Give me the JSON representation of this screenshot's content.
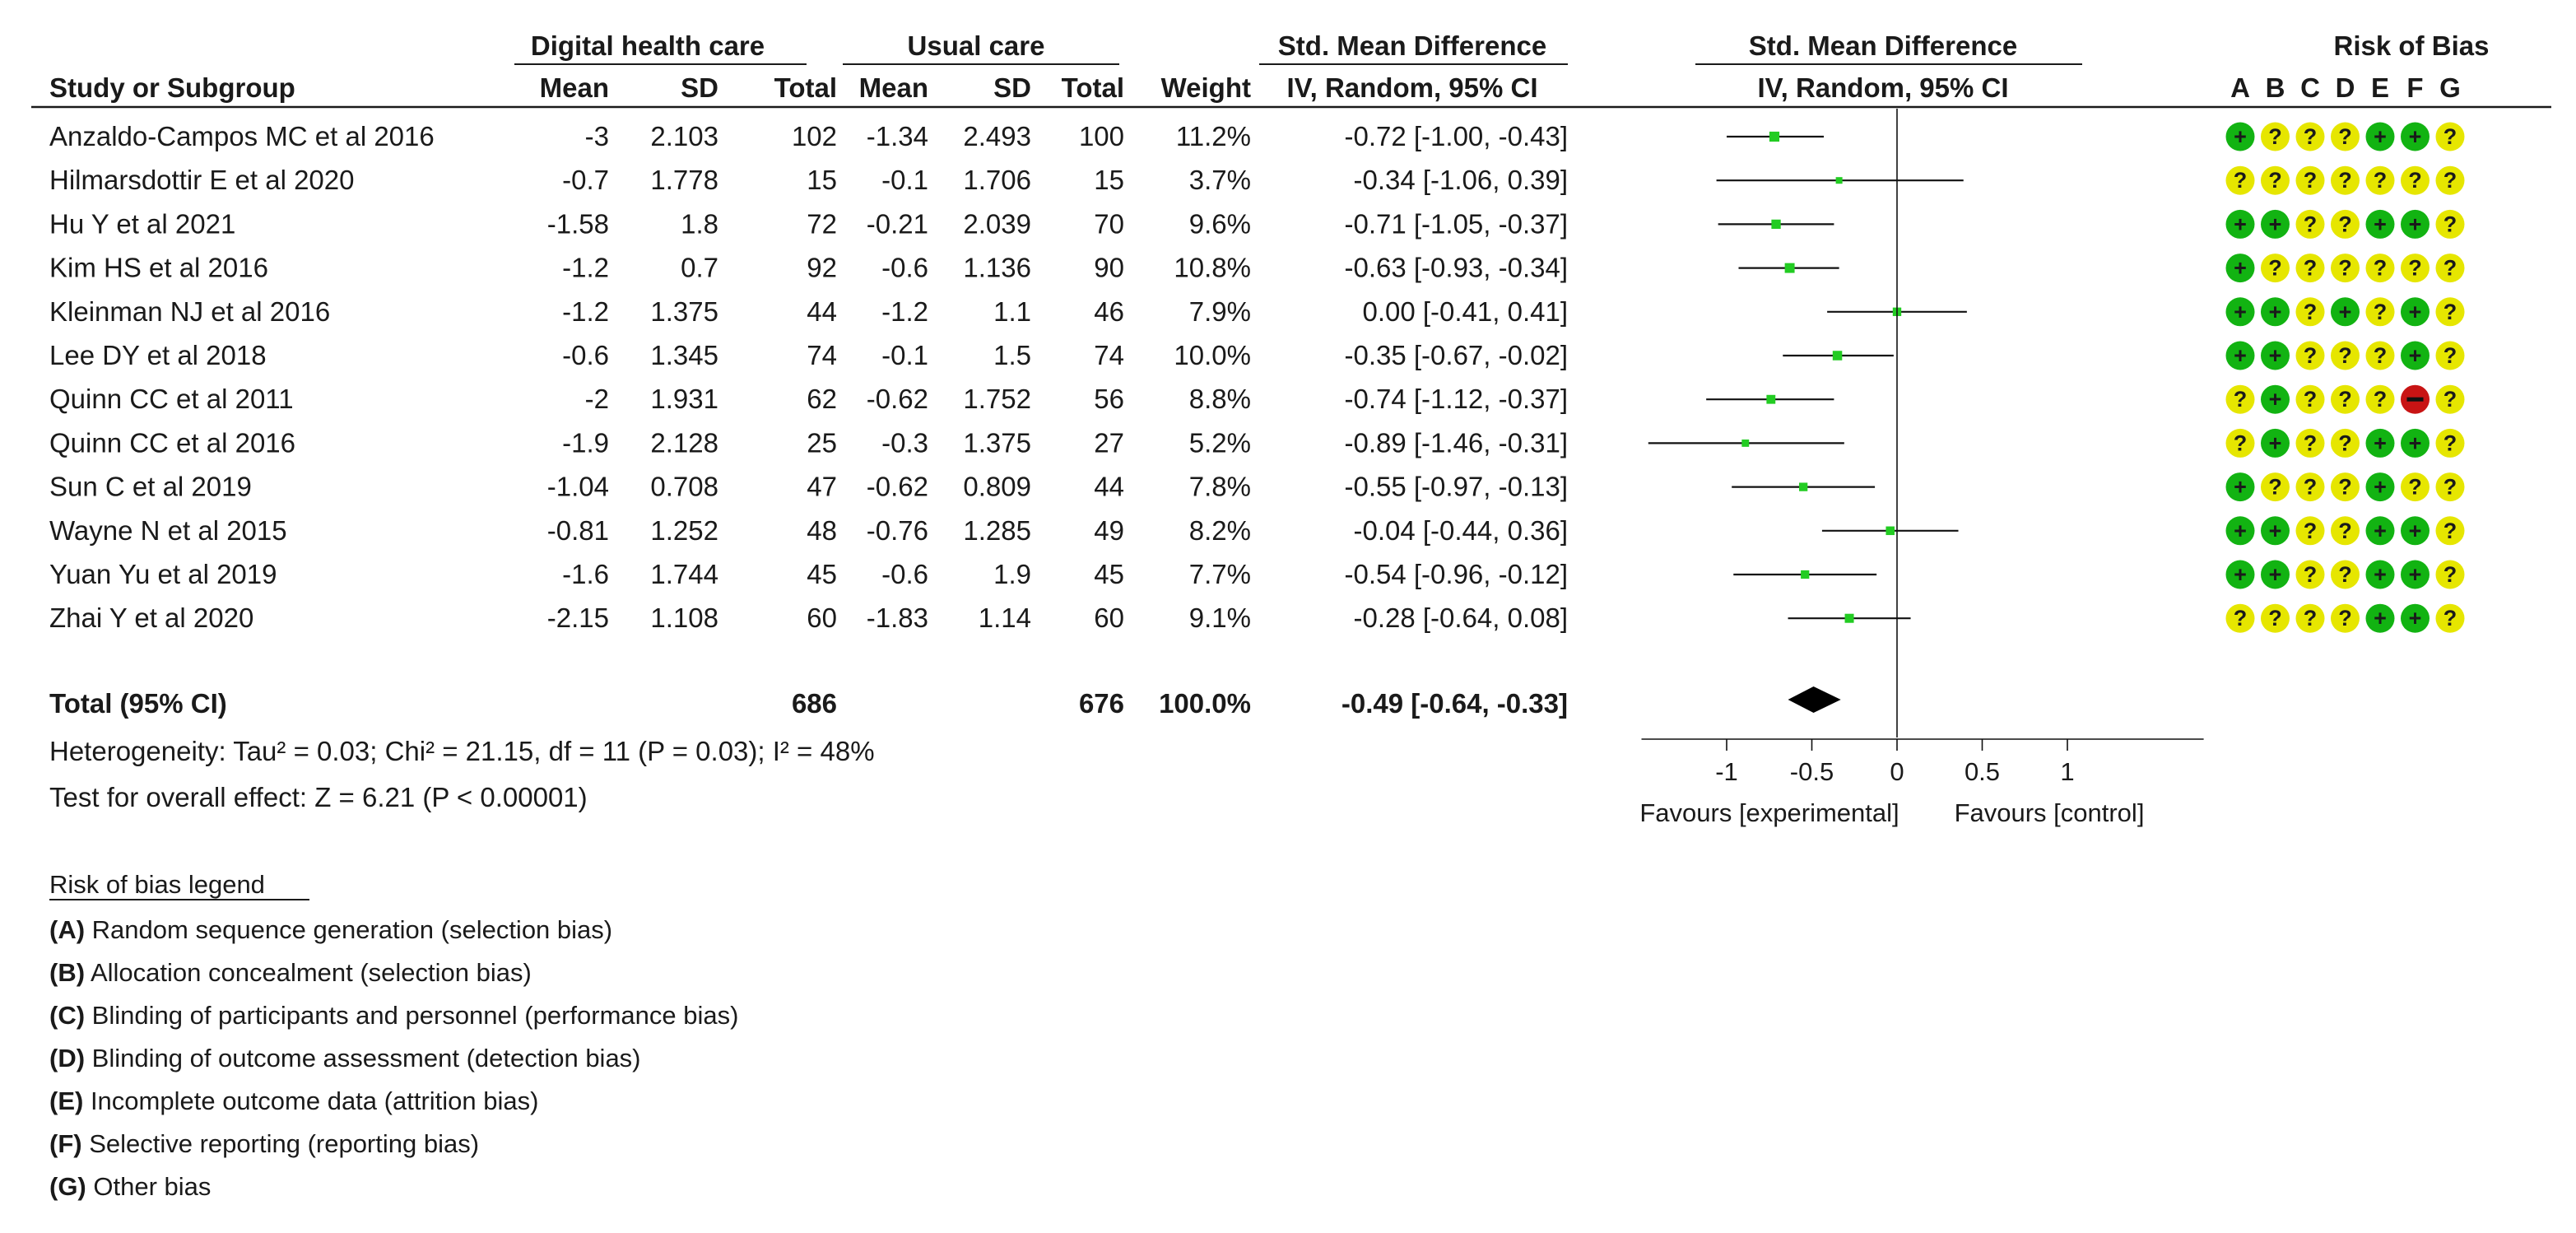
{
  "chart_data": {
    "type": "forest",
    "group_headers": {
      "experimental": "Digital health care",
      "control": "Usual care",
      "effect_text": "Std. Mean Difference",
      "effect_plot": "Std. Mean Difference",
      "risk_of_bias": "Risk of Bias"
    },
    "columns": {
      "study": "Study or Subgroup",
      "exp_mean": "Mean",
      "exp_sd": "SD",
      "exp_total": "Total",
      "ctl_mean": "Mean",
      "ctl_sd": "SD",
      "ctl_total": "Total",
      "weight": "Weight",
      "effect_text": "IV, Random, 95% CI",
      "effect_plot": "IV, Random, 95% CI"
    },
    "rob_domains": [
      "A",
      "B",
      "C",
      "D",
      "E",
      "F",
      "G"
    ],
    "studies": [
      {
        "name": "Anzaldo-Campos MC et al 2016",
        "exp_mean": "-3",
        "exp_sd": "2.103",
        "exp_total": "102",
        "ctl_mean": "-1.34",
        "ctl_sd": "2.493",
        "ctl_total": "100",
        "weight_label": "11.2%",
        "weight": 11.2,
        "ci_label": "-0.72 [-1.00, -0.43]",
        "est": -0.72,
        "lo": -1.0,
        "hi": -0.43,
        "rob": [
          "+",
          "?",
          "?",
          "?",
          "+",
          "+",
          "?"
        ]
      },
      {
        "name": "Hilmarsdottir E et al 2020",
        "exp_mean": "-0.7",
        "exp_sd": "1.778",
        "exp_total": "15",
        "ctl_mean": "-0.1",
        "ctl_sd": "1.706",
        "ctl_total": "15",
        "weight_label": "3.7%",
        "weight": 3.7,
        "ci_label": "-0.34 [-1.06, 0.39]",
        "est": -0.34,
        "lo": -1.06,
        "hi": 0.39,
        "rob": [
          "?",
          "?",
          "?",
          "?",
          "?",
          "?",
          "?"
        ]
      },
      {
        "name": "Hu Y et al 2021",
        "exp_mean": "-1.58",
        "exp_sd": "1.8",
        "exp_total": "72",
        "ctl_mean": "-0.21",
        "ctl_sd": "2.039",
        "ctl_total": "70",
        "weight_label": "9.6%",
        "weight": 9.6,
        "ci_label": "-0.71 [-1.05, -0.37]",
        "est": -0.71,
        "lo": -1.05,
        "hi": -0.37,
        "rob": [
          "+",
          "+",
          "?",
          "?",
          "+",
          "+",
          "?"
        ]
      },
      {
        "name": "Kim HS et al 2016",
        "exp_mean": "-1.2",
        "exp_sd": "0.7",
        "exp_total": "92",
        "ctl_mean": "-0.6",
        "ctl_sd": "1.136",
        "ctl_total": "90",
        "weight_label": "10.8%",
        "weight": 10.8,
        "ci_label": "-0.63 [-0.93, -0.34]",
        "est": -0.63,
        "lo": -0.93,
        "hi": -0.34,
        "rob": [
          "+",
          "?",
          "?",
          "?",
          "?",
          "?",
          "?"
        ]
      },
      {
        "name": "Kleinman NJ et al 2016",
        "exp_mean": "-1.2",
        "exp_sd": "1.375",
        "exp_total": "44",
        "ctl_mean": "-1.2",
        "ctl_sd": "1.1",
        "ctl_total": "46",
        "weight_label": "7.9%",
        "weight": 7.9,
        "ci_label": "0.00 [-0.41, 0.41]",
        "est": 0.0,
        "lo": -0.41,
        "hi": 0.41,
        "rob": [
          "+",
          "+",
          "?",
          "+",
          "?",
          "+",
          "?"
        ]
      },
      {
        "name": "Lee DY et al 2018",
        "exp_mean": "-0.6",
        "exp_sd": "1.345",
        "exp_total": "74",
        "ctl_mean": "-0.1",
        "ctl_sd": "1.5",
        "ctl_total": "74",
        "weight_label": "10.0%",
        "weight": 10.0,
        "ci_label": "-0.35 [-0.67, -0.02]",
        "est": -0.35,
        "lo": -0.67,
        "hi": -0.02,
        "rob": [
          "+",
          "+",
          "?",
          "?",
          "?",
          "+",
          "?"
        ]
      },
      {
        "name": "Quinn CC et al 2011",
        "exp_mean": "-2",
        "exp_sd": "1.931",
        "exp_total": "62",
        "ctl_mean": "-0.62",
        "ctl_sd": "1.752",
        "ctl_total": "56",
        "weight_label": "8.8%",
        "weight": 8.8,
        "ci_label": "-0.74 [-1.12, -0.37]",
        "est": -0.74,
        "lo": -1.12,
        "hi": -0.37,
        "rob": [
          "?",
          "+",
          "?",
          "?",
          "?",
          "-",
          "?"
        ]
      },
      {
        "name": "Quinn CC et al 2016",
        "exp_mean": "-1.9",
        "exp_sd": "2.128",
        "exp_total": "25",
        "ctl_mean": "-0.3",
        "ctl_sd": "1.375",
        "ctl_total": "27",
        "weight_label": "5.2%",
        "weight": 5.2,
        "ci_label": "-0.89 [-1.46, -0.31]",
        "est": -0.89,
        "lo": -1.46,
        "hi": -0.31,
        "rob": [
          "?",
          "+",
          "?",
          "?",
          "+",
          "+",
          "?"
        ]
      },
      {
        "name": "Sun C et al 2019",
        "exp_mean": "-1.04",
        "exp_sd": "0.708",
        "exp_total": "47",
        "ctl_mean": "-0.62",
        "ctl_sd": "0.809",
        "ctl_total": "44",
        "weight_label": "7.8%",
        "weight": 7.8,
        "ci_label": "-0.55 [-0.97, -0.13]",
        "est": -0.55,
        "lo": -0.97,
        "hi": -0.13,
        "rob": [
          "+",
          "?",
          "?",
          "?",
          "+",
          "?",
          "?"
        ]
      },
      {
        "name": "Wayne N et al 2015",
        "exp_mean": "-0.81",
        "exp_sd": "1.252",
        "exp_total": "48",
        "ctl_mean": "-0.76",
        "ctl_sd": "1.285",
        "ctl_total": "49",
        "weight_label": "8.2%",
        "weight": 8.2,
        "ci_label": "-0.04 [-0.44, 0.36]",
        "est": -0.04,
        "lo": -0.44,
        "hi": 0.36,
        "rob": [
          "+",
          "+",
          "?",
          "?",
          "+",
          "+",
          "?"
        ]
      },
      {
        "name": "Yuan Yu et al 2019",
        "exp_mean": "-1.6",
        "exp_sd": "1.744",
        "exp_total": "45",
        "ctl_mean": "-0.6",
        "ctl_sd": "1.9",
        "ctl_total": "45",
        "weight_label": "7.7%",
        "weight": 7.7,
        "ci_label": "-0.54 [-0.96, -0.12]",
        "est": -0.54,
        "lo": -0.96,
        "hi": -0.12,
        "rob": [
          "+",
          "+",
          "?",
          "?",
          "+",
          "+",
          "?"
        ]
      },
      {
        "name": "Zhai Y et al 2020",
        "exp_mean": "-2.15",
        "exp_sd": "1.108",
        "exp_total": "60",
        "ctl_mean": "-1.83",
        "ctl_sd": "1.14",
        "ctl_total": "60",
        "weight_label": "9.1%",
        "weight": 9.1,
        "ci_label": "-0.28 [-0.64, 0.08]",
        "est": -0.28,
        "lo": -0.64,
        "hi": 0.08,
        "rob": [
          "?",
          "?",
          "?",
          "?",
          "+",
          "+",
          "?"
        ]
      }
    ],
    "total": {
      "label": "Total (95% CI)",
      "exp_total": "686",
      "ctl_total": "676",
      "weight_label": "100.0%",
      "ci_label": "-0.49 [-0.64, -0.33]",
      "est": -0.49,
      "lo": -0.64,
      "hi": -0.33
    },
    "heterogeneity": "Heterogeneity: Tau² = 0.03; Chi² = 21.15, df = 11 (P = 0.03); I² = 48%",
    "overall_effect": "Test for overall effect: Z = 6.21 (P < 0.00001)",
    "x_axis": {
      "ticks": [
        -1,
        -0.5,
        0,
        0.5,
        1
      ],
      "tick_labels": [
        "-1",
        "-0.5",
        "0",
        "0.5",
        "1"
      ],
      "xlim": [
        -1.5,
        1.8
      ],
      "favours_left": "Favours [experimental]",
      "favours_right": "Favours [control]"
    },
    "rob_legend": {
      "title": "Risk of bias legend",
      "items": [
        {
          "key": "(A)",
          "text": "Random sequence generation (selection bias)"
        },
        {
          "key": "(B)",
          "text": "Allocation concealment (selection bias)"
        },
        {
          "key": "(C)",
          "text": "Blinding of participants and personnel (performance bias)"
        },
        {
          "key": "(D)",
          "text": "Blinding of outcome assessment (detection bias)"
        },
        {
          "key": "(E)",
          "text": "Incomplete outcome data (attrition bias)"
        },
        {
          "key": "(F)",
          "text": "Selective reporting (reporting bias)"
        },
        {
          "key": "(G)",
          "text": "Other bias"
        }
      ]
    },
    "colors": {
      "low_risk": "#12b312",
      "unclear_risk": "#e6e600",
      "high_risk": "#c81414",
      "marker": "#22cc22",
      "line": "#111111",
      "text": "#1a1a1a"
    }
  }
}
